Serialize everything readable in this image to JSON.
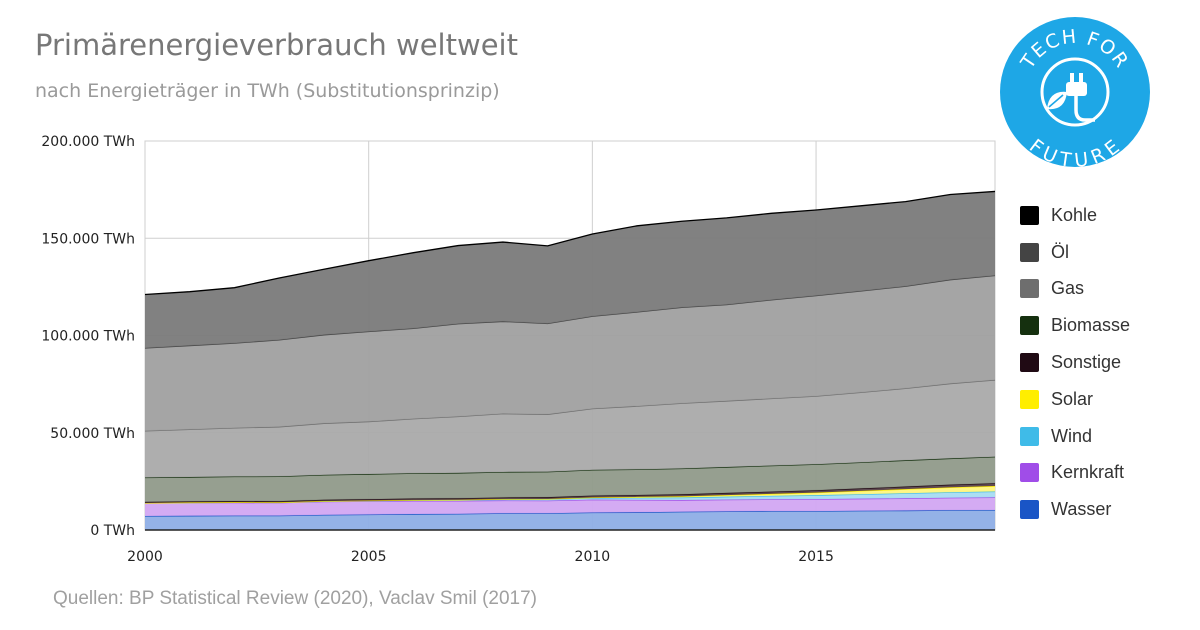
{
  "header": {
    "title": "Primärenergieverbrauch weltweit",
    "subtitle": "nach Energieträger in TWh (Substitutionsprinzip)"
  },
  "footer": {
    "source": "Quellen: BP Statistical Review (2020), Vaclav Smil (2017)"
  },
  "logo": {
    "top_text": "TECH FOR",
    "bottom_text": "FUTURE",
    "color": "#1ea7e6",
    "icon": "plug-leaf-icon"
  },
  "legend": {
    "items": [
      {
        "label": "Kohle",
        "color": "#000000"
      },
      {
        "label": "Öl",
        "color": "#444444"
      },
      {
        "label": "Gas",
        "color": "#6e6e6e"
      },
      {
        "label": "Biomasse",
        "color": "#15300f"
      },
      {
        "label": "Sonstige",
        "color": "#200a14"
      },
      {
        "label": "Solar",
        "color": "#ffee00"
      },
      {
        "label": "Wind",
        "color": "#3fbbe8"
      },
      {
        "label": "Kernkraft",
        "color": "#a04de8"
      },
      {
        "label": "Wasser",
        "color": "#1a55c6"
      }
    ]
  },
  "chart_data": {
    "type": "area",
    "stacked": true,
    "title": "Primärenergieverbrauch weltweit",
    "subtitle": "nach Energieträger in TWh (Substitutionsprinzip)",
    "x": [
      2000,
      2001,
      2002,
      2003,
      2004,
      2005,
      2006,
      2007,
      2008,
      2009,
      2010,
      2011,
      2012,
      2013,
      2014,
      2015,
      2016,
      2017,
      2018,
      2019
    ],
    "xlim": [
      2000,
      2019
    ],
    "ylim": [
      0,
      200000
    ],
    "x_ticks": [
      2000,
      2005,
      2010,
      2015
    ],
    "y_ticks": [
      0,
      50000,
      100000,
      150000,
      200000
    ],
    "y_tick_labels": [
      "0 TWh",
      "50.000 TWh",
      "100.000 TWh",
      "150.000 TWh",
      "200.000 TWh"
    ],
    "x_tick_labels": [
      "2000",
      "2005",
      "2010",
      "2015"
    ],
    "grid": true,
    "legend_position": "right",
    "series": [
      {
        "name": "Wasser",
        "color": "#8eaee6",
        "values": [
          7200,
          7300,
          7400,
          7400,
          7800,
          8000,
          8200,
          8300,
          8600,
          8600,
          9000,
          9100,
          9400,
          9600,
          9700,
          9700,
          9900,
          10000,
          10200,
          10300
        ]
      },
      {
        "name": "Kernkraft",
        "color": "#d2a6f2",
        "values": [
          6600,
          6700,
          6700,
          6600,
          6800,
          6800,
          6800,
          6700,
          6600,
          6500,
          6600,
          6400,
          6000,
          6000,
          6100,
          6200,
          6200,
          6300,
          6400,
          6500
        ]
      },
      {
        "name": "Wind",
        "color": "#a6dcf2",
        "values": [
          80,
          100,
          130,
          170,
          220,
          270,
          340,
          440,
          560,
          700,
          880,
          1080,
          1290,
          1540,
          1750,
          2000,
          2300,
          2600,
          2800,
          3000
        ]
      },
      {
        "name": "Solar",
        "color": "#fff580",
        "values": [
          5,
          8,
          10,
          13,
          20,
          30,
          40,
          60,
          100,
          170,
          260,
          420,
          600,
          800,
          1000,
          1300,
          1700,
          2100,
          2500,
          2800
        ]
      },
      {
        "name": "Sonstige",
        "color": "#57404a",
        "values": [
          600,
          620,
          650,
          680,
          720,
          760,
          800,
          840,
          880,
          910,
          960,
          1000,
          1060,
          1120,
          1170,
          1220,
          1280,
          1340,
          1400,
          1460
        ]
      },
      {
        "name": "Biomasse",
        "color": "#909a8a",
        "values": [
          12500,
          12500,
          12600,
          12700,
          12800,
          12900,
          13000,
          13000,
          13100,
          13100,
          13200,
          13200,
          13300,
          13300,
          13400,
          13400,
          13400,
          13500,
          13500,
          13600
        ]
      },
      {
        "name": "Gas",
        "color": "#aaaaaa",
        "values": [
          24000,
          24500,
          25000,
          25500,
          26500,
          27000,
          28000,
          29000,
          30000,
          29500,
          31500,
          32500,
          33500,
          34000,
          34500,
          35000,
          36000,
          37000,
          38500,
          39500
        ]
      },
      {
        "name": "Öl",
        "color": "#a0a0a0",
        "values": [
          42600,
          43100,
          43600,
          44700,
          45500,
          46300,
          46500,
          47700,
          47400,
          46700,
          47500,
          48400,
          49300,
          49500,
          50700,
          51700,
          52100,
          52500,
          53400,
          53700
        ]
      },
      {
        "name": "Kohle",
        "color": "#7a7a7a",
        "values": [
          27500,
          27700,
          28500,
          31800,
          33700,
          36400,
          38900,
          40200,
          40800,
          39900,
          42300,
          44300,
          44300,
          44600,
          44500,
          44000,
          43800,
          43500,
          43800,
          43200
        ]
      }
    ]
  }
}
